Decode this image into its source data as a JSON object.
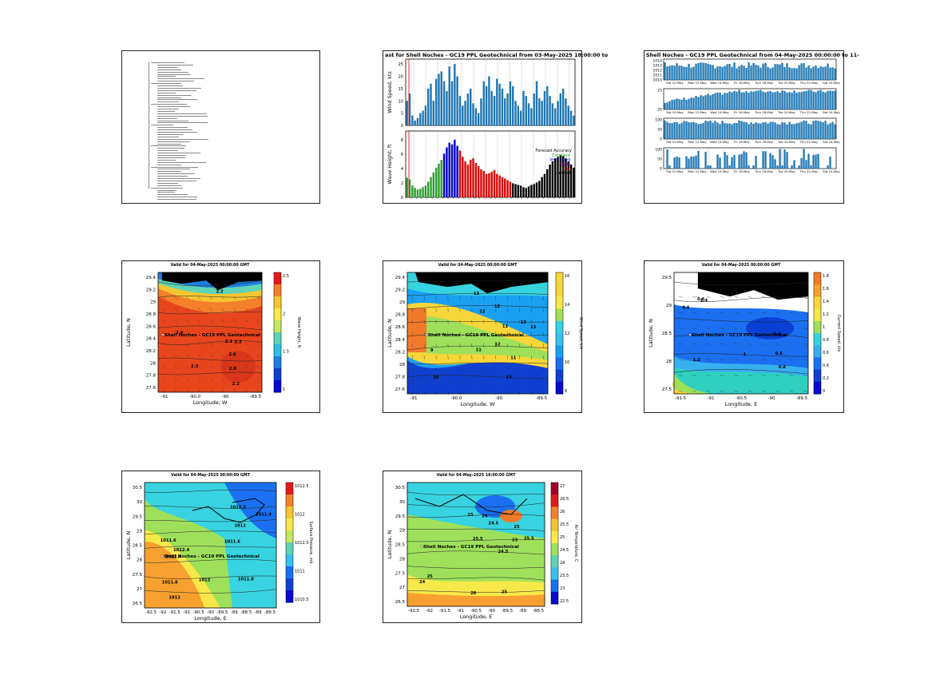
{
  "panels": {
    "doc": {
      "lines": 60
    },
    "wind_wave": {
      "title": "ast for Shell Noches - GC19 PPL Geotechnical from 03-May-2025 18:00:00 to",
      "wind_ylabel": "Wind Speed, kts",
      "wave_ylabel": "Wave Height, ft",
      "legend_title": "Forecast Accuracy",
      "legend_items": [
        {
          "label": "Excellent",
          "color": "#2ca02c"
        },
        {
          "label": "Very Good",
          "color": "#0000cc"
        },
        {
          "label": "Good",
          "color": "#9900cc"
        },
        {
          "label": "Fair",
          "color": "#dd0000"
        },
        {
          "label": "Limited",
          "color": "#000000"
        }
      ],
      "wind_ticks": [
        "0",
        "5",
        "10",
        "15",
        "20",
        "25"
      ],
      "wave_ticks": [
        "0",
        "2",
        "4",
        "6",
        "8"
      ]
    },
    "met_stack": {
      "title": "Shell Noches - GC19 PPL Geotechnical from 04-May-2025 00:00:00 to 11-",
      "x_ticks": [
        "Sat 10-May",
        "Mon 12-May",
        "Wed 14-May",
        "Fri 16-May",
        "Sun 18-May",
        "Tue 20-May",
        "Thu 22-May",
        "Sat 24-May"
      ],
      "row_ticks": [
        [
          "1014",
          "1013",
          "1012",
          "1011",
          "1010"
        ],
        [
          "25",
          "20"
        ],
        [
          "100",
          "50",
          "0"
        ],
        [
          "100",
          "50",
          "0"
        ]
      ]
    },
    "sig_wave": {
      "title": "Valid for 04-May-2025 00:00:00 GMT",
      "site": "Shell Noches - GC19 PPL Geotechnical",
      "xlabel": "Longitude, W",
      "ylabel": "Latitude, N",
      "cbar_label": "Wave Height, ft",
      "x_ticks": [
        "-91",
        "-90.0",
        "-90",
        "-89.5"
      ],
      "y_ticks": [
        "29.4",
        "29.2",
        "29",
        "28.8",
        "28.6",
        "28.4",
        "28.2",
        "28",
        "27.8",
        "27.6"
      ],
      "cbar_ticks": [
        "2.5",
        "2",
        "1.5",
        "1"
      ],
      "contours": [
        "2.1",
        "2.2",
        "2.3",
        "2.6",
        "2.6",
        "2.2",
        "2.2",
        "2.4"
      ]
    },
    "wind_speed": {
      "title": "Valid for 04-May-2025 00:00:00 GMT",
      "site": "Shell Noches - GC19 PPL Geotechnical",
      "xlabel": "Longitude, W",
      "ylabel": "Latitude, N",
      "cbar_label": "Wind Speed, kts",
      "x_ticks": [
        "-91",
        "-90.0",
        "-90",
        "-89.5"
      ],
      "y_ticks": [
        "29.4",
        "29.2",
        "29",
        "28.8",
        "28.6",
        "28.4",
        "28.2",
        "28",
        "27.8",
        "27.6"
      ],
      "cbar_ticks": [
        "16",
        "14",
        "12",
        "10",
        "8"
      ],
      "contours": [
        "13",
        "11",
        "10",
        "12",
        "13",
        "9",
        "12",
        "11",
        "13",
        "12",
        "13",
        "11"
      ]
    },
    "current": {
      "title": "Valid for 04-May-2025 00:00:00 GMT",
      "site": "Shell Noches - GC19 PPL Geotechnical",
      "xlabel": "Longitude, E",
      "ylabel": "Latitude, N",
      "cbar_label": "Current Speed, kts",
      "x_ticks": [
        "-91.5",
        "-91",
        "-90.5",
        "-90",
        "-89.5"
      ],
      "y_ticks": [
        "29.5",
        "29",
        "28.5",
        "28",
        "27.5"
      ],
      "cbar_ticks": [
        "1.8",
        "1.6",
        "1.4",
        "1.2",
        "1",
        "0.8",
        "0.6",
        "0.4",
        "0.2",
        "0"
      ],
      "contours": [
        "0.6",
        "0.8",
        "0.6",
        "1",
        "1.2",
        "1.4",
        "0.6",
        "0.6"
      ]
    },
    "pressure": {
      "title": "Valid for 04-May-2025 00:00:00 GMT",
      "site": "Shell Noches - GC19 PPL Geotechnical",
      "xlabel": "Longitude, E",
      "ylabel": "Latitude, N",
      "cbar_label": "Surface Pressure, mb",
      "x_ticks": [
        "-92.5",
        "-92",
        "-91.5",
        "-91",
        "-90.5",
        "-90",
        "-89.5",
        "-89",
        "-88.5",
        "-89",
        "-88.5"
      ],
      "y_ticks": [
        "30.5",
        "30",
        "29.5",
        "29",
        "28.5",
        "28",
        "27.5",
        "27",
        "26.5"
      ],
      "cbar_ticks": [
        "1012.5",
        "1012",
        "1011.5",
        "1011",
        "1010.5"
      ],
      "contours": [
        "1012",
        "1011.8",
        "1011.6",
        "1012.4",
        "1011.6",
        "1011.4",
        "1012.4",
        "1012",
        "1011.8",
        "1012.2",
        "1012"
      ]
    },
    "air_temp": {
      "title": "Valid for 04-May-2025 18:00:00 GMT",
      "site": "Shell Noches - GC19 PPL Geotechnical",
      "xlabel": "Longitude, E",
      "ylabel": "Latitude, N",
      "cbar_label": "Air Temperature, C",
      "x_ticks": [
        "-92.5",
        "-92",
        "-91.5",
        "-91",
        "-90.5",
        "-90",
        "-89.5",
        "-89",
        "-88.5"
      ],
      "y_ticks": [
        "30.5",
        "30",
        "29.5",
        "29",
        "28.5",
        "28",
        "27.5",
        "27",
        "26.5"
      ],
      "cbar_ticks": [
        "27",
        "26.5",
        "26",
        "25.5",
        "25",
        "24.5",
        "24",
        "23.5",
        "23",
        "22.5"
      ],
      "contours": [
        "24",
        "25",
        "24.5",
        "25",
        "25.5",
        "23",
        "24.5",
        "25",
        "25.5",
        "26",
        "25",
        "24"
      ]
    }
  }
}
